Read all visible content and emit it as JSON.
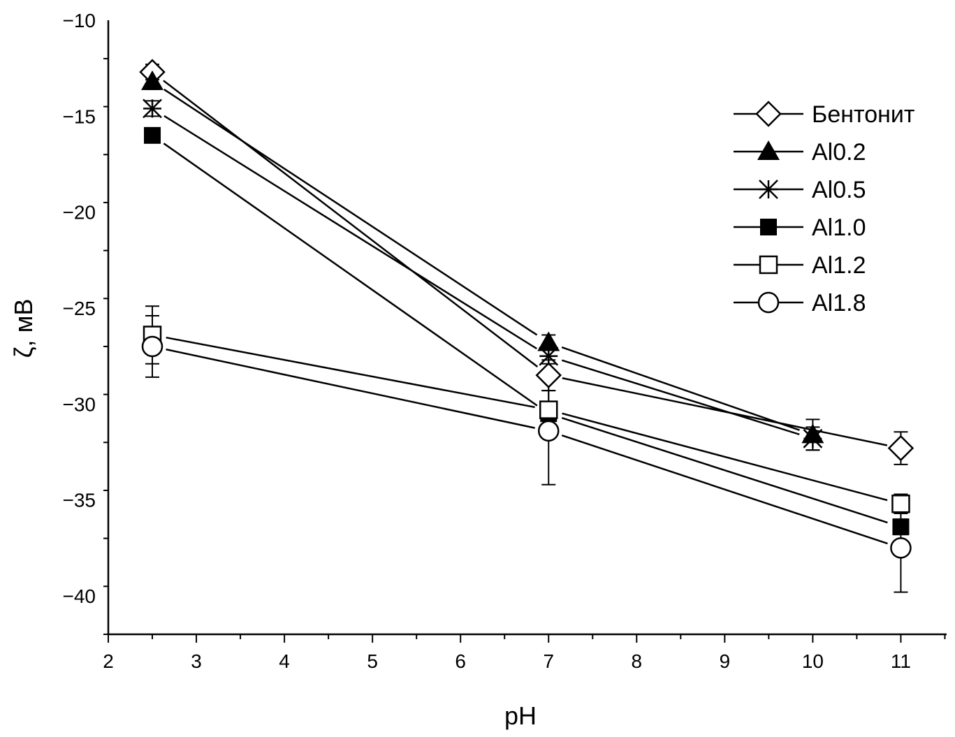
{
  "chart_data": {
    "type": "line",
    "title": "",
    "xlabel": "pH",
    "ylabel": "ζ, мВ",
    "xlim": [
      2,
      11.52
    ],
    "ylim": [
      -42,
      -10
    ],
    "xticks": [
      2,
      3,
      4,
      5,
      6,
      7,
      8,
      9,
      10,
      11
    ],
    "yticks": [
      -10,
      -15,
      -20,
      -25,
      -30,
      -35,
      -40
    ],
    "grid": false,
    "legend_position": "top-right",
    "line_color": "#000000",
    "series": [
      {
        "name": "Бентонит",
        "marker": "diamond-open",
        "x": [
          2.5,
          7,
          11
        ],
        "y": [
          -12.7,
          -28.5,
          -32.3
        ],
        "yerr": [
          0.4,
          0.8,
          0.85
        ]
      },
      {
        "name": "Al0.2",
        "marker": "triangle-filled",
        "x": [
          2.5,
          7,
          10
        ],
        "y": [
          -13.2,
          -26.8,
          -31.6
        ],
        "yerr": [
          0.4,
          0.4,
          0.8
        ]
      },
      {
        "name": "Al0.5",
        "marker": "asterisk",
        "x": [
          2.5,
          7,
          10
        ],
        "y": [
          -14.6,
          -27.5,
          -31.8
        ],
        "yerr": [
          0.4,
          0.4,
          0.6
        ]
      },
      {
        "name": "Al1.0",
        "marker": "square-filled",
        "x": [
          2.5,
          7,
          11
        ],
        "y": [
          -16.0,
          -30.5,
          -36.4
        ],
        "yerr": [
          0.3,
          0.3,
          0.4
        ]
      },
      {
        "name": "Al1.2",
        "marker": "square-open",
        "x": [
          2.5,
          7,
          11
        ],
        "y": [
          -26.4,
          -30.3,
          -35.2
        ],
        "yerr": [
          1.5,
          1.0,
          0.5
        ]
      },
      {
        "name": "Al1.8",
        "marker": "circle-open",
        "x": [
          2.5,
          7,
          11
        ],
        "y": [
          -27.0,
          -31.4,
          -37.5
        ],
        "yerr": [
          1.6,
          2.8,
          2.3
        ]
      }
    ]
  }
}
